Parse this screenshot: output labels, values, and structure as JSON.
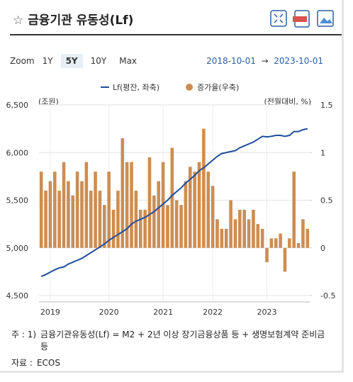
{
  "header": {
    "title": "금융기관 유동성(Lf)"
  },
  "toolbar": {
    "zoom_label": "Zoom",
    "buttons": [
      "1Y",
      "5Y",
      "10Y",
      "Max"
    ],
    "selected": "5Y",
    "date_from": "2018-10-01",
    "range_separator": "→",
    "date_to": "2023-10-01"
  },
  "chart_data": {
    "type": "combo",
    "y_title": "(조원)",
    "y2_title": "(전월대비, %)",
    "categories": [
      null,
      null,
      "2019",
      null,
      null,
      null,
      null,
      null,
      null,
      null,
      null,
      null,
      null,
      null,
      null,
      "2020",
      null,
      null,
      null,
      null,
      null,
      null,
      null,
      null,
      null,
      null,
      null,
      "2021",
      null,
      null,
      null,
      null,
      null,
      null,
      null,
      null,
      null,
      null,
      "2022",
      null,
      null,
      null,
      null,
      null,
      null,
      null,
      null,
      null,
      null,
      null,
      "2023",
      null,
      null,
      null,
      null,
      null,
      null,
      null,
      null,
      null
    ],
    "ylim": [
      4500,
      6500
    ],
    "yticks": [
      {
        "value": 4500,
        "label": "4,500"
      },
      {
        "value": 5000,
        "label": "5,000"
      },
      {
        "value": 5500,
        "label": "5,500"
      },
      {
        "value": 6000,
        "label": "6,000"
      },
      {
        "value": 6500,
        "label": "6,500"
      }
    ],
    "y2lim": [
      -0.5,
      1.5
    ],
    "y2ticks": [
      -0.5,
      0,
      0.5,
      1,
      1.5
    ],
    "grid": true,
    "series": [
      {
        "name": "Lf(평잔, 좌축)",
        "kind": "line",
        "color": "#1f4e9c",
        "values": [
          4700,
          4720,
          4745,
          4770,
          4790,
          4800,
          4830,
          4850,
          4870,
          4890,
          4920,
          4950,
          4980,
          5010,
          5040,
          5080,
          5110,
          5140,
          5170,
          5200,
          5250,
          5280,
          5300,
          5320,
          5350,
          5380,
          5420,
          5460,
          5500,
          5550,
          5590,
          5630,
          5680,
          5720,
          5760,
          5810,
          5840,
          5880,
          5920,
          5960,
          5990,
          6000,
          6010,
          6020,
          6050,
          6070,
          6090,
          6110,
          6140,
          6170,
          6165,
          6170,
          6180,
          6180,
          6170,
          6180,
          6220,
          6220,
          6240,
          6250
        ]
      },
      {
        "name": "증가율(우축)",
        "kind": "bar",
        "axis": "y2",
        "color": "#cd8d52",
        "values": [
          0.8,
          0.6,
          0.7,
          0.8,
          0.6,
          0.9,
          0.7,
          0.55,
          0.8,
          0.7,
          0.9,
          0.6,
          0.8,
          0.6,
          0.45,
          0.8,
          0.4,
          0.6,
          1.15,
          0.9,
          0.9,
          0.6,
          0.4,
          0.4,
          0.95,
          0.55,
          0.7,
          0.9,
          0.45,
          1.05,
          0.5,
          0.45,
          0.7,
          0.85,
          0.8,
          0.9,
          1.25,
          0.8,
          0.65,
          0.3,
          0.2,
          0.2,
          0.5,
          0.3,
          0.4,
          0.4,
          0.3,
          0.4,
          0.25,
          0.2,
          -0.15,
          0.1,
          0.1,
          0.15,
          -0.25,
          0.1,
          0.8,
          0.05,
          0.3,
          0.2
        ]
      }
    ]
  },
  "notes": {
    "note_label": "주 : 1)",
    "note_text": "금융기관유동성(Lf) = M2 + 2년 이상 장기금융상품 등 + 생명보험계약 준비금 등",
    "source_label": "자료 :",
    "source_text": "ECOS"
  }
}
